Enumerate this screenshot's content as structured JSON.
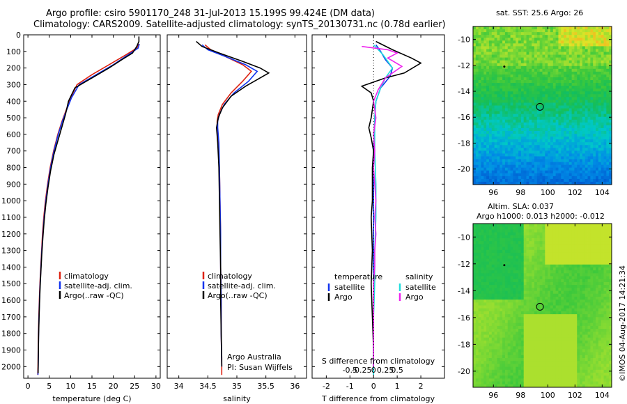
{
  "title_line1": "Argo profile: csiro 5901170_248 31-Jul-2013 15.199S 99.424E (DM data)",
  "title_line2": "Climatology: CARS2009. Satellite-adjusted climatology: synTS_20130731.nc (0.78d earlier)",
  "colors": {
    "clim": "#dd2211",
    "sat": "#1133ee",
    "argo": "#000000",
    "cyan": "#22dddd",
    "magenta": "#ee22ee"
  },
  "chart_data": [
    {
      "type": "line",
      "name": "temperature-panel",
      "xlabel": "temperature (deg C)",
      "ylabel": "",
      "xlim": [
        -1,
        31
      ],
      "ylim": [
        2070,
        0
      ],
      "xticks": [
        0,
        5,
        10,
        15,
        20,
        25,
        30
      ],
      "yticks": [
        0,
        100,
        200,
        300,
        400,
        500,
        600,
        700,
        800,
        900,
        1000,
        1100,
        1200,
        1300,
        1400,
        1500,
        1600,
        1700,
        1800,
        1900,
        2000
      ],
      "legend": [
        "climatology",
        "satellite-adj. clim.",
        "Argo(..raw -QC)"
      ],
      "series": [
        {
          "name": "climatology",
          "color": "clim",
          "points": [
            [
              25.9,
              55
            ],
            [
              25.5,
              80
            ],
            [
              23,
              120
            ],
            [
              19,
              180
            ],
            [
              15,
              240
            ],
            [
              11.5,
              300
            ],
            [
              10,
              380
            ],
            [
              9,
              450
            ],
            [
              8,
              520
            ],
            [
              7,
              600
            ],
            [
              6,
              700
            ],
            [
              5.2,
              800
            ],
            [
              4.6,
              900
            ],
            [
              4.1,
              1000
            ],
            [
              3.7,
              1100
            ],
            [
              3.4,
              1200
            ],
            [
              3.2,
              1300
            ],
            [
              3.0,
              1400
            ],
            [
              2.8,
              1500
            ],
            [
              2.65,
              1600
            ],
            [
              2.55,
              1700
            ],
            [
              2.45,
              1800
            ],
            [
              2.4,
              1900
            ],
            [
              2.35,
              2000
            ],
            [
              2.3,
              2050
            ]
          ]
        },
        {
          "name": "satellite",
          "color": "sat",
          "points": [
            [
              26.1,
              55
            ],
            [
              25.8,
              80
            ],
            [
              23.5,
              120
            ],
            [
              20,
              180
            ],
            [
              16,
              240
            ],
            [
              12,
              300
            ],
            [
              10.2,
              380
            ],
            [
              9.1,
              450
            ],
            [
              8.1,
              520
            ],
            [
              7.1,
              600
            ],
            [
              6.1,
              700
            ],
            [
              5.3,
              800
            ],
            [
              4.7,
              900
            ],
            [
              4.2,
              1000
            ],
            [
              3.8,
              1100
            ],
            [
              3.5,
              1200
            ],
            [
              3.25,
              1300
            ],
            [
              3.05,
              1400
            ],
            [
              2.85,
              1500
            ],
            [
              2.7,
              1600
            ],
            [
              2.6,
              1700
            ],
            [
              2.5,
              1800
            ],
            [
              2.45,
              1900
            ],
            [
              2.4,
              2000
            ],
            [
              2.35,
              2050
            ]
          ]
        },
        {
          "name": "Argo",
          "color": "argo",
          "points": [
            [
              26.0,
              10
            ],
            [
              26.0,
              40
            ],
            [
              25.5,
              70
            ],
            [
              24.5,
              110
            ],
            [
              22,
              150
            ],
            [
              19,
              200
            ],
            [
              15,
              260
            ],
            [
              11,
              320
            ],
            [
              9.5,
              400
            ],
            [
              8.8,
              480
            ],
            [
              7.9,
              560
            ],
            [
              7.0,
              640
            ],
            [
              6.1,
              720
            ],
            [
              5.3,
              820
            ],
            [
              4.7,
              920
            ],
            [
              4.2,
              1020
            ],
            [
              3.8,
              1120
            ],
            [
              3.5,
              1220
            ],
            [
              3.25,
              1320
            ],
            [
              3.05,
              1420
            ],
            [
              2.85,
              1520
            ],
            [
              2.7,
              1620
            ],
            [
              2.6,
              1720
            ],
            [
              2.5,
              1820
            ],
            [
              2.45,
              1920
            ],
            [
              2.4,
              2000
            ],
            [
              2.38,
              2040
            ]
          ]
        }
      ]
    },
    {
      "type": "line",
      "name": "salinity-panel",
      "xlabel": "salinity",
      "xlim": [
        33.8,
        36.2
      ],
      "ylim": [
        2070,
        0
      ],
      "xticks": [
        34,
        34.5,
        35,
        35.5,
        36
      ],
      "legend": [
        "climatology",
        "satellite-adj. clim.",
        "Argo(..raw -QC)"
      ],
      "annotation": [
        "Argo Australia",
        "PI: Susan Wijffels"
      ],
      "series": [
        {
          "name": "climatology",
          "color": "clim",
          "points": [
            [
              34.45,
              60
            ],
            [
              34.55,
              90
            ],
            [
              34.8,
              130
            ],
            [
              35.1,
              180
            ],
            [
              35.25,
              220
            ],
            [
              35.1,
              280
            ],
            [
              34.9,
              350
            ],
            [
              34.75,
              420
            ],
            [
              34.68,
              480
            ],
            [
              34.66,
              520
            ],
            [
              34.66,
              560
            ],
            [
              34.68,
              650
            ],
            [
              34.7,
              800
            ],
            [
              34.71,
              1000
            ],
            [
              34.72,
              1200
            ],
            [
              34.72,
              1400
            ],
            [
              34.73,
              1600
            ],
            [
              34.73,
              1800
            ],
            [
              34.74,
              2000
            ],
            [
              34.74,
              2050
            ]
          ]
        },
        {
          "name": "satellite",
          "color": "sat",
          "points": [
            [
              34.4,
              60
            ],
            [
              34.5,
              90
            ],
            [
              34.8,
              130
            ],
            [
              35.15,
              180
            ],
            [
              35.35,
              220
            ],
            [
              35.2,
              280
            ],
            [
              34.95,
              350
            ],
            [
              34.78,
              420
            ],
            [
              34.7,
              480
            ],
            [
              34.67,
              520
            ],
            [
              34.67,
              560
            ],
            [
              34.69,
              650
            ],
            [
              34.7,
              800
            ],
            [
              34.71,
              1000
            ],
            [
              34.72,
              1200
            ],
            [
              34.72,
              1400
            ],
            [
              34.73,
              1600
            ],
            [
              34.73,
              1800
            ],
            [
              34.74,
              2000
            ]
          ]
        },
        {
          "name": "Argo",
          "color": "argo",
          "points": [
            [
              34.3,
              40
            ],
            [
              34.4,
              70
            ],
            [
              34.7,
              110
            ],
            [
              35.1,
              160
            ],
            [
              35.4,
              200
            ],
            [
              35.55,
              230
            ],
            [
              35.4,
              260
            ],
            [
              35.15,
              310
            ],
            [
              34.9,
              370
            ],
            [
              34.75,
              440
            ],
            [
              34.68,
              500
            ],
            [
              34.65,
              560
            ],
            [
              34.67,
              650
            ],
            [
              34.69,
              800
            ],
            [
              34.7,
              1000
            ],
            [
              34.71,
              1200
            ],
            [
              34.72,
              1400
            ],
            [
              34.72,
              1600
            ],
            [
              34.73,
              1800
            ],
            [
              34.74,
              1950
            ],
            [
              34.74,
              2000
            ]
          ]
        }
      ]
    },
    {
      "type": "line",
      "name": "difference-panel",
      "xlabel": "T difference from climatology",
      "top_xlabel": "S difference from climatology",
      "xlim": [
        -2.6,
        3.0
      ],
      "ylim": [
        2070,
        0
      ],
      "xticks": [
        -2,
        -1,
        0,
        1,
        2
      ],
      "top_xticks": [
        "-0.5",
        "-0.25",
        "0",
        "0.25",
        "0.5"
      ],
      "legend_temperature": [
        "temperature",
        "satellite",
        "Argo"
      ],
      "legend_salinity": [
        "salinity",
        "satellite",
        "Argo"
      ],
      "series": [
        {
          "name": "T satellite",
          "color": "sat",
          "points": [
            [
              0.1,
              60
            ],
            [
              0.3,
              100
            ],
            [
              0.5,
              150
            ],
            [
              0.8,
              200
            ],
            [
              0.7,
              250
            ],
            [
              0.3,
              320
            ],
            [
              0.1,
              400
            ],
            [
              0.05,
              500
            ],
            [
              0.0,
              700
            ],
            [
              0.0,
              1000
            ],
            [
              0.0,
              1500
            ],
            [
              0.0,
              2050
            ]
          ]
        },
        {
          "name": "T Argo",
          "color": "argo",
          "points": [
            [
              0.1,
              40
            ],
            [
              0.8,
              90
            ],
            [
              1.6,
              140
            ],
            [
              2.0,
              170
            ],
            [
              1.3,
              230
            ],
            [
              0.5,
              260
            ],
            [
              -0.5,
              310
            ],
            [
              -0.1,
              350
            ],
            [
              0.0,
              400
            ],
            [
              -0.1,
              500
            ],
            [
              -0.2,
              560
            ],
            [
              -0.1,
              620
            ],
            [
              0.0,
              700
            ],
            [
              -0.05,
              800
            ],
            [
              -0.05,
              900
            ],
            [
              -0.05,
              1000
            ],
            [
              -0.1,
              1100
            ],
            [
              -0.05,
              1300
            ],
            [
              -0.1,
              1500
            ],
            [
              -0.05,
              1700
            ],
            [
              0.0,
              1900
            ],
            [
              0.0,
              2040
            ]
          ]
        },
        {
          "name": "S satellite",
          "color": "cyan",
          "points": [
            [
              0.0,
              60
            ],
            [
              0.2,
              90
            ],
            [
              0.4,
              120
            ],
            [
              0.6,
              160
            ],
            [
              0.8,
              200
            ],
            [
              0.5,
              260
            ],
            [
              0.3,
              320
            ],
            [
              0.1,
              400
            ],
            [
              0.05,
              500
            ],
            [
              0.05,
              700
            ],
            [
              0.1,
              900
            ],
            [
              0.1,
              1100
            ],
            [
              0.05,
              1300
            ],
            [
              0.05,
              1500
            ],
            [
              0.0,
              1700
            ],
            [
              0.0,
              2050
            ]
          ]
        },
        {
          "name": "S Argo",
          "color": "magenta",
          "points": [
            [
              -0.5,
              70
            ],
            [
              0.6,
              90
            ],
            [
              1.0,
              110
            ],
            [
              0.6,
              140
            ],
            [
              1.2,
              190
            ],
            [
              0.9,
              220
            ],
            [
              0.5,
              260
            ],
            [
              0.2,
              330
            ],
            [
              0.0,
              400
            ],
            [
              0.1,
              500
            ],
            [
              0.0,
              600
            ],
            [
              0.05,
              700
            ],
            [
              0.0,
              800
            ],
            [
              0.05,
              900
            ],
            [
              0.1,
              1000
            ],
            [
              0.05,
              1100
            ],
            [
              0.1,
              1200
            ],
            [
              0.05,
              1300
            ],
            [
              0.05,
              1400
            ],
            [
              0.0,
              1500
            ],
            [
              0.0,
              1700
            ],
            [
              0.0,
              1900
            ],
            [
              0.0,
              2000
            ]
          ]
        }
      ]
    },
    {
      "type": "heatmap",
      "name": "sst-map",
      "title": "sat. SST: 25.6  Argo: 26",
      "xlim": [
        94.5,
        104.7
      ],
      "ylim": [
        -21.2,
        -9.0
      ],
      "xticks": [
        96,
        98,
        100,
        102,
        104
      ],
      "yticks": [
        -10,
        -12,
        -14,
        -16,
        -18,
        -20
      ],
      "argo_position": [
        99.424,
        -15.199
      ],
      "track_point": [
        96.8,
        -12.1
      ]
    },
    {
      "type": "heatmap",
      "name": "sla-map",
      "title_line1": "Altim. SLA: 0.037",
      "title_line2": "Argo h1000: 0.013  h2000: -0.012",
      "xlim": [
        94.5,
        104.7
      ],
      "ylim": [
        -21.2,
        -9.0
      ],
      "xticks": [
        96,
        98,
        100,
        102,
        104
      ],
      "yticks": [
        -10,
        -12,
        -14,
        -16,
        -18,
        -20
      ],
      "argo_position": [
        99.424,
        -15.199
      ],
      "track_point": [
        96.8,
        -12.1
      ]
    }
  ],
  "side_stamp": "©IMOS 04-Aug-2017 14:21:34"
}
